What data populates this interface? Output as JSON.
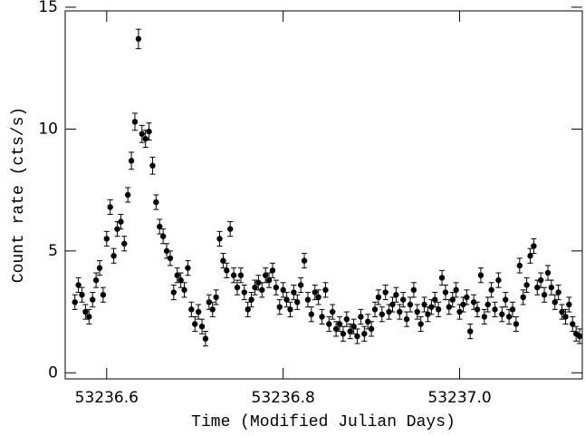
{
  "chart_data": {
    "type": "scatter",
    "xlabel": "Time (Modified Julian Days)",
    "ylabel": "Count rate (cts/s)",
    "color": "#000000",
    "xlim": [
      53236.553,
      53237.139
    ],
    "ylim": [
      -0.25,
      14.85
    ],
    "xticks": [
      53236.6,
      53236.8,
      {
        "value": 53237,
        "label": "53237.0"
      }
    ],
    "yticks": [
      0,
      5,
      10,
      15
    ],
    "x": [
      53236.564,
      53236.568,
      53236.572,
      53236.576,
      53236.58,
      53236.584,
      53236.588,
      53236.592,
      53236.596,
      53236.6,
      53236.604,
      53236.608,
      53236.612,
      53236.616,
      53236.62,
      53236.624,
      53236.628,
      53236.632,
      53236.636,
      53236.64,
      53236.644,
      53236.648,
      53236.652,
      53236.656,
      53236.66,
      53236.664,
      53236.668,
      53236.672,
      53236.676,
      53236.68,
      53236.684,
      53236.688,
      53236.692,
      53236.696,
      53236.7,
      53236.704,
      53236.708,
      53236.712,
      53236.716,
      53236.72,
      53236.724,
      53236.728,
      53236.732,
      53236.736,
      53236.74,
      53236.744,
      53236.748,
      53236.752,
      53236.756,
      53236.76,
      53236.764,
      53236.768,
      53236.772,
      53236.776,
      53236.78,
      53236.784,
      53236.788,
      53236.792,
      53236.796,
      53236.8,
      53236.804,
      53236.808,
      53236.812,
      53236.816,
      53236.82,
      53236.824,
      53236.828,
      53236.832,
      53236.836,
      53236.84,
      53236.844,
      53236.848,
      53236.852,
      53236.856,
      53236.86,
      53236.864,
      53236.868,
      53236.872,
      53236.876,
      53236.88,
      53236.884,
      53236.888,
      53236.892,
      53236.896,
      53236.9,
      53236.904,
      53236.908,
      53236.912,
      53236.916,
      53236.92,
      53236.924,
      53236.928,
      53236.932,
      53236.936,
      53236.94,
      53236.944,
      53236.948,
      53236.952,
      53236.956,
      53236.96,
      53236.964,
      53236.968,
      53236.972,
      53236.976,
      53236.98,
      53236.984,
      53236.988,
      53236.992,
      53236.996,
      53237.0,
      53237.004,
      53237.008,
      53237.012,
      53237.016,
      53237.02,
      53237.024,
      53237.028,
      53237.032,
      53237.036,
      53237.04,
      53237.044,
      53237.048,
      53237.052,
      53237.056,
      53237.06,
      53237.064,
      53237.068,
      53237.072,
      53237.076,
      53237.08,
      53237.084,
      53237.088,
      53237.092,
      53237.096,
      53237.1,
      53237.104,
      53237.108,
      53237.112,
      53237.116,
      53237.12,
      53237.124,
      53237.128,
      53237.132,
      53237.136
    ],
    "values": [
      2.9,
      3.6,
      3.2,
      2.5,
      2.3,
      3.0,
      3.8,
      4.3,
      3.2,
      5.5,
      6.8,
      4.8,
      5.9,
      6.2,
      5.3,
      7.3,
      8.7,
      10.3,
      13.7,
      9.8,
      9.6,
      9.9,
      8.5,
      7.0,
      6.0,
      5.6,
      5.0,
      4.7,
      3.3,
      4.0,
      3.8,
      3.4,
      4.3,
      2.6,
      2.0,
      2.5,
      1.9,
      1.4,
      2.9,
      2.6,
      3.1,
      5.5,
      4.6,
      4.2,
      5.9,
      4.0,
      3.5,
      4.0,
      3.3,
      2.6,
      3.0,
      3.5,
      3.7,
      3.4,
      4.0,
      3.8,
      4.2,
      3.5,
      2.7,
      3.4,
      3.0,
      2.6,
      3.3,
      2.9,
      3.6,
      4.6,
      3.0,
      2.4,
      3.3,
      3.1,
      2.3,
      3.4,
      2.0,
      2.5,
      1.8,
      2.0,
      1.6,
      2.2,
      1.7,
      1.9,
      1.5,
      2.3,
      1.6,
      2.1,
      1.8,
      2.6,
      3.1,
      2.4,
      3.3,
      2.5,
      2.8,
      3.2,
      2.5,
      3.0,
      2.2,
      2.8,
      3.4,
      2.5,
      2.0,
      2.8,
      2.4,
      2.7,
      3.0,
      2.6,
      3.9,
      3.3,
      2.7,
      3.0,
      3.4,
      2.5,
      2.8,
      3.1,
      1.7,
      2.9,
      2.6,
      4.0,
      2.3,
      2.8,
      3.4,
      2.6,
      3.8,
      2.4,
      3.0,
      2.3,
      2.6,
      2.0,
      4.4,
      3.1,
      3.6,
      4.8,
      5.2,
      3.5,
      3.8,
      3.2,
      4.1,
      3.5,
      2.9,
      3.3,
      2.5,
      2.3,
      2.8,
      2.0,
      1.6,
      1.5
    ],
    "errors": [
      0.3,
      0.3,
      0.3,
      0.3,
      0.3,
      0.3,
      0.3,
      0.3,
      0.3,
      0.3,
      0.3,
      0.3,
      0.3,
      0.3,
      0.3,
      0.3,
      0.35,
      0.35,
      0.4,
      0.35,
      0.35,
      0.35,
      0.35,
      0.3,
      0.3,
      0.3,
      0.3,
      0.3,
      0.3,
      0.3,
      0.3,
      0.3,
      0.3,
      0.3,
      0.3,
      0.3,
      0.3,
      0.3,
      0.3,
      0.3,
      0.3,
      0.3,
      0.3,
      0.3,
      0.3,
      0.3,
      0.3,
      0.3,
      0.3,
      0.3,
      0.3,
      0.3,
      0.3,
      0.3,
      0.3,
      0.3,
      0.3,
      0.3,
      0.3,
      0.3,
      0.3,
      0.3,
      0.3,
      0.3,
      0.3,
      0.3,
      0.3,
      0.3,
      0.3,
      0.3,
      0.3,
      0.3,
      0.3,
      0.3,
      0.3,
      0.3,
      0.3,
      0.3,
      0.3,
      0.3,
      0.3,
      0.3,
      0.3,
      0.3,
      0.3,
      0.3,
      0.3,
      0.3,
      0.3,
      0.3,
      0.3,
      0.3,
      0.3,
      0.3,
      0.3,
      0.3,
      0.3,
      0.3,
      0.3,
      0.3,
      0.3,
      0.3,
      0.3,
      0.3,
      0.3,
      0.3,
      0.3,
      0.3,
      0.3,
      0.3,
      0.3,
      0.3,
      0.3,
      0.3,
      0.3,
      0.3,
      0.3,
      0.3,
      0.3,
      0.3,
      0.3,
      0.3,
      0.3,
      0.3,
      0.3,
      0.3,
      0.3,
      0.3,
      0.3,
      0.3,
      0.3,
      0.3,
      0.3,
      0.3,
      0.3,
      0.3,
      0.3,
      0.3,
      0.3,
      0.3,
      0.3,
      0.3,
      0.3,
      0.3
    ]
  }
}
